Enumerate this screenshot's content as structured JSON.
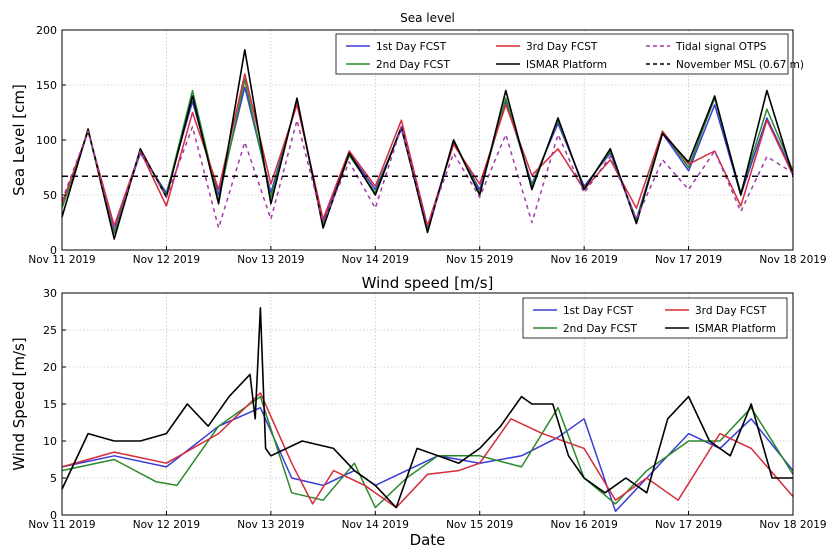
{
  "chart_data": [
    {
      "type": "line",
      "title": "Sea level",
      "xlabel": "",
      "ylabel": "Sea Level [cm]",
      "ylim": [
        0,
        200
      ],
      "xlim": [
        0,
        7
      ],
      "yticks": [
        0,
        50,
        100,
        150,
        200
      ],
      "xticks": [
        "Nov 11 2019",
        "Nov 12 2019",
        "Nov 13 2019",
        "Nov 14 2019",
        "Nov 15 2019",
        "Nov 16 2019",
        "Nov 17 2019",
        "Nov 18 2019"
      ],
      "grid": true,
      "legend_position": "top-right",
      "series": [
        {
          "name": "1st Day FCST",
          "color": "#3b3bd9",
          "style": "solid",
          "x": [
            0,
            0.25,
            0.5,
            0.75,
            1,
            1.25,
            1.5,
            1.75,
            2,
            2.25,
            2.5,
            2.75,
            3,
            3.25,
            3.5,
            3.75,
            4,
            4.25,
            4.5,
            4.75,
            5,
            5.25,
            5.5,
            5.75,
            6,
            6.25,
            6.5,
            6.75,
            7
          ],
          "values": [
            40,
            108,
            18,
            88,
            52,
            135,
            50,
            148,
            52,
            135,
            25,
            88,
            55,
            110,
            20,
            98,
            55,
            135,
            60,
            115,
            58,
            88,
            28,
            106,
            72,
            132,
            50,
            120,
            70
          ]
        },
        {
          "name": "2nd Day FCST",
          "color": "#2a8a2a",
          "style": "solid",
          "x": [
            0,
            0.25,
            0.5,
            0.75,
            1,
            1.25,
            1.5,
            1.75,
            2,
            2.25,
            2.5,
            2.75,
            3,
            3.25,
            3.5,
            3.75,
            4,
            4.25,
            4.5,
            4.75,
            5,
            5.25,
            5.5,
            5.75,
            6,
            6.25,
            6.5,
            6.75,
            7
          ],
          "values": [
            38,
            108,
            15,
            90,
            50,
            145,
            45,
            155,
            48,
            135,
            22,
            86,
            52,
            112,
            18,
            100,
            52,
            138,
            58,
            118,
            56,
            90,
            26,
            108,
            75,
            138,
            52,
            128,
            72
          ]
        },
        {
          "name": "3rd Day FCST",
          "color": "#d62c3c",
          "style": "solid",
          "x": [
            0,
            0.25,
            0.5,
            0.75,
            1,
            1.25,
            1.5,
            1.75,
            2,
            2.25,
            2.5,
            2.75,
            3,
            3.25,
            3.5,
            3.75,
            4,
            4.25,
            4.5,
            4.75,
            5,
            5.25,
            5.5,
            5.75,
            6,
            6.25,
            6.5,
            6.75,
            7
          ],
          "values": [
            42,
            108,
            22,
            90,
            40,
            125,
            55,
            160,
            60,
            132,
            28,
            90,
            58,
            118,
            22,
            96,
            60,
            132,
            68,
            92,
            55,
            82,
            38,
            108,
            78,
            90,
            40,
            118,
            68
          ]
        },
        {
          "name": "ISMAR Platform",
          "color": "#000000",
          "style": "solid",
          "x": [
            0,
            0.25,
            0.5,
            0.75,
            1,
            1.25,
            1.5,
            1.75,
            2,
            2.25,
            2.5,
            2.75,
            3,
            3.25,
            3.5,
            3.75,
            4,
            4.25,
            4.5,
            4.75,
            5,
            5.25,
            5.5,
            5.75,
            6,
            6.25,
            6.5,
            6.75,
            7
          ],
          "values": [
            30,
            110,
            10,
            92,
            48,
            140,
            42,
            182,
            42,
            138,
            20,
            88,
            50,
            112,
            16,
            100,
            50,
            145,
            55,
            120,
            55,
            92,
            24,
            106,
            80,
            140,
            50,
            145,
            68
          ]
        },
        {
          "name": "Tidal signal OTPS",
          "color": "#a03aa8",
          "style": "dashed",
          "x": [
            0,
            0.25,
            0.5,
            0.75,
            1,
            1.25,
            1.5,
            1.75,
            2,
            2.25,
            2.5,
            2.75,
            3,
            3.25,
            3.5,
            3.75,
            4,
            4.25,
            4.5,
            4.75,
            5,
            5.25,
            5.5,
            5.75,
            6,
            6.25,
            6.5,
            6.75,
            7
          ],
          "values": [
            45,
            108,
            18,
            90,
            48,
            112,
            20,
            98,
            28,
            118,
            25,
            80,
            38,
            112,
            22,
            88,
            48,
            105,
            25,
            105,
            52,
            85,
            28,
            82,
            55,
            90,
            35,
            85,
            70
          ]
        },
        {
          "name": "November MSL (0.67 m)",
          "color": "#000000",
          "style": "dashed",
          "x": [
            0,
            7
          ],
          "values": [
            67,
            67
          ]
        }
      ]
    },
    {
      "type": "line",
      "title": "Wind speed [m/s]",
      "xlabel": "Date",
      "ylabel": "Wind Speed [m/s]",
      "ylim": [
        0,
        30
      ],
      "xlim": [
        0,
        7
      ],
      "yticks": [
        0,
        5,
        10,
        15,
        20,
        25,
        30
      ],
      "xticks": [
        "Nov 11 2019",
        "Nov 12 2019",
        "Nov 13 2019",
        "Nov 14 2019",
        "Nov 15 2019",
        "Nov 16 2019",
        "Nov 17 2019",
        "Nov 18 2019"
      ],
      "grid": true,
      "legend_position": "top-right",
      "series": [
        {
          "name": "1st Day FCST",
          "color": "#3b3bd9",
          "style": "solid",
          "x": [
            0,
            0.5,
            1,
            1.5,
            1.9,
            2.2,
            2.5,
            2.8,
            3,
            3.3,
            3.6,
            4,
            4.4,
            4.75,
            5,
            5.3,
            5.6,
            6,
            6.3,
            6.6,
            7
          ],
          "values": [
            6.5,
            8,
            6.5,
            12,
            14.5,
            5,
            4,
            6,
            4,
            6,
            8,
            7,
            8,
            10.5,
            13,
            0.5,
            5,
            11,
            9,
            13,
            6
          ]
        },
        {
          "name": "2nd Day FCST",
          "color": "#2a8a2a",
          "style": "solid",
          "x": [
            0,
            0.5,
            0.9,
            1.1,
            1.5,
            1.9,
            2.2,
            2.5,
            2.8,
            3,
            3.3,
            3.6,
            4,
            4.4,
            4.75,
            5,
            5.3,
            5.6,
            6,
            6.3,
            6.6,
            7
          ],
          "values": [
            6,
            7.5,
            4.5,
            4,
            12,
            16,
            3,
            2,
            7,
            1,
            5,
            8,
            8,
            6.5,
            14.5,
            5,
            1.5,
            6,
            10,
            10,
            14.5,
            5.5
          ]
        },
        {
          "name": "3rd Day FCST",
          "color": "#d62c3c",
          "style": "solid",
          "x": [
            0,
            0.5,
            1,
            1.5,
            1.9,
            2.2,
            2.4,
            2.6,
            2.9,
            3.2,
            3.5,
            3.8,
            4,
            4.3,
            4.6,
            5,
            5.3,
            5.6,
            5.9,
            6.3,
            6.6,
            7
          ],
          "values": [
            6.5,
            8.5,
            7,
            11,
            16.5,
            7,
            1.5,
            6,
            4,
            1,
            5.5,
            6,
            7,
            13,
            11,
            9,
            2,
            5,
            2,
            11,
            9,
            2.5
          ]
        },
        {
          "name": "ISMAR Platform",
          "color": "#000000",
          "style": "solid",
          "x": [
            0,
            0.25,
            0.5,
            0.75,
            1,
            1.2,
            1.4,
            1.6,
            1.8,
            1.85,
            1.9,
            1.95,
            2,
            2.3,
            2.6,
            2.8,
            3,
            3.2,
            3.4,
            3.6,
            3.8,
            4,
            4.2,
            4.3,
            4.4,
            4.5,
            4.7,
            4.85,
            5,
            5.2,
            5.4,
            5.6,
            5.8,
            6,
            6.2,
            6.4,
            6.6,
            6.8,
            7
          ],
          "values": [
            3.5,
            11,
            10,
            10,
            11,
            15,
            12,
            16,
            19,
            13,
            28,
            9,
            8,
            10,
            9,
            6,
            4,
            1,
            9,
            8,
            7,
            9,
            12,
            14,
            16,
            15,
            15,
            8,
            5,
            3,
            5,
            3,
            13,
            16,
            10,
            8,
            15,
            5,
            5
          ]
        }
      ]
    }
  ]
}
